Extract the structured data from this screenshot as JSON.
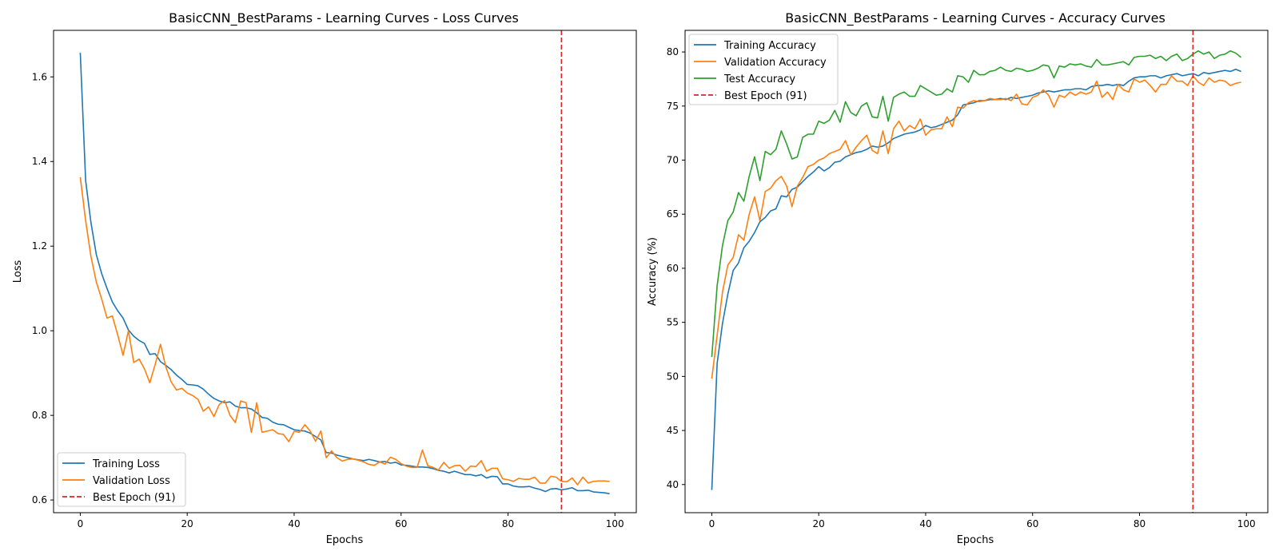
{
  "colors": {
    "training": "#1f77b4",
    "validation": "#ff7f0e",
    "test": "#2ca02c",
    "best_epoch": "#d62728"
  },
  "charts": {
    "loss": {
      "title": "BasicCNN_BestParams - Learning Curves - Loss Curves",
      "xlabel": "Epochs",
      "ylabel": "Loss",
      "xlim": [
        -5,
        104
      ],
      "ylim": [
        0.57,
        1.71
      ],
      "xticks": [
        0,
        20,
        40,
        60,
        80,
        100
      ],
      "yticks": [
        0.6,
        0.8,
        1.0,
        1.2,
        1.4,
        1.6
      ],
      "ytick_decimals": 1,
      "legend_position": "lower-left",
      "best_epoch_x": 90,
      "legend": [
        "Training Loss",
        "Validation Loss",
        "Best Epoch (91)"
      ]
    },
    "acc": {
      "title": "BasicCNN_BestParams - Learning Curves - Accuracy Curves",
      "xlabel": "Epochs",
      "ylabel": "Accuracy (%)",
      "xlim": [
        -5,
        104
      ],
      "ylim": [
        37.4,
        82.0
      ],
      "xticks": [
        0,
        20,
        40,
        60,
        80,
        100
      ],
      "yticks": [
        40,
        45,
        50,
        55,
        60,
        65,
        70,
        75,
        80
      ],
      "ytick_decimals": 0,
      "legend_position": "upper-left",
      "best_epoch_x": 90,
      "legend": [
        "Training Accuracy",
        "Validation Accuracy",
        "Test Accuracy",
        "Best Epoch (91)"
      ]
    }
  },
  "chart_data": [
    {
      "type": "line",
      "title": "BasicCNN_BestParams - Learning Curves - Loss Curves",
      "xlabel": "Epochs",
      "ylabel": "Loss",
      "xlim": [
        -5,
        104
      ],
      "ylim": [
        0.57,
        1.71
      ],
      "grid": false,
      "legend_position": "lower-left",
      "x_start": 0,
      "series": [
        {
          "name": "Training Loss",
          "values": [
            1.657,
            1.355,
            1.255,
            1.18,
            1.135,
            1.1,
            1.068,
            1.047,
            1.03,
            1.002,
            0.987,
            0.977,
            0.97,
            0.944,
            0.946,
            0.927,
            0.918,
            0.908,
            0.895,
            0.885,
            0.873,
            0.872,
            0.87,
            0.862,
            0.85,
            0.84,
            0.834,
            0.83,
            0.832,
            0.822,
            0.818,
            0.818,
            0.815,
            0.806,
            0.795,
            0.793,
            0.784,
            0.779,
            0.778,
            0.772,
            0.766,
            0.764,
            0.763,
            0.758,
            0.75,
            0.742,
            0.712,
            0.711,
            0.706,
            0.703,
            0.7,
            0.697,
            0.695,
            0.693,
            0.696,
            0.693,
            0.69,
            0.691,
            0.687,
            0.689,
            0.683,
            0.682,
            0.68,
            0.678,
            0.678,
            0.677,
            0.674,
            0.67,
            0.668,
            0.664,
            0.668,
            0.664,
            0.66,
            0.66,
            0.657,
            0.66,
            0.652,
            0.656,
            0.655,
            0.638,
            0.638,
            0.633,
            0.631,
            0.631,
            0.632,
            0.628,
            0.625,
            0.62,
            0.626,
            0.627,
            0.624,
            0.626,
            0.629,
            0.622,
            0.622,
            0.623,
            0.619,
            0.618,
            0.617,
            0.615
          ]
        },
        {
          "name": "Validation Loss",
          "values": [
            1.363,
            1.26,
            1.175,
            1.115,
            1.075,
            1.03,
            1.035,
            0.99,
            0.942,
            1.0,
            0.925,
            0.933,
            0.91,
            0.877,
            0.92,
            0.968,
            0.915,
            0.879,
            0.86,
            0.864,
            0.853,
            0.847,
            0.838,
            0.81,
            0.82,
            0.797,
            0.826,
            0.835,
            0.8,
            0.783,
            0.834,
            0.83,
            0.76,
            0.83,
            0.76,
            0.763,
            0.766,
            0.757,
            0.755,
            0.738,
            0.762,
            0.76,
            0.778,
            0.763,
            0.739,
            0.763,
            0.7,
            0.716,
            0.7,
            0.692,
            0.696,
            0.697,
            0.694,
            0.69,
            0.684,
            0.682,
            0.69,
            0.685,
            0.701,
            0.696,
            0.686,
            0.68,
            0.677,
            0.677,
            0.718,
            0.681,
            0.677,
            0.671,
            0.689,
            0.675,
            0.681,
            0.682,
            0.668,
            0.68,
            0.679,
            0.693,
            0.668,
            0.675,
            0.675,
            0.65,
            0.648,
            0.644,
            0.651,
            0.649,
            0.649,
            0.654,
            0.64,
            0.64,
            0.656,
            0.654,
            0.644,
            0.643,
            0.652,
            0.636,
            0.654,
            0.64,
            0.644,
            0.645,
            0.645,
            0.644
          ]
        }
      ],
      "best_epoch_line": {
        "name": "Best Epoch (91)",
        "x": 90
      }
    },
    {
      "type": "line",
      "title": "BasicCNN_BestParams - Learning Curves - Accuracy Curves",
      "xlabel": "Epochs",
      "ylabel": "Accuracy (%)",
      "xlim": [
        -5,
        104
      ],
      "ylim": [
        37.4,
        82.0
      ],
      "grid": false,
      "legend_position": "upper-left",
      "x_start": 0,
      "series": [
        {
          "name": "Training Accuracy",
          "values": [
            39.5,
            51.2,
            54.9,
            57.6,
            59.8,
            60.5,
            61.9,
            62.5,
            63.3,
            64.3,
            64.7,
            65.3,
            65.5,
            66.7,
            66.6,
            67.3,
            67.5,
            68.0,
            68.5,
            68.9,
            69.4,
            69.0,
            69.3,
            69.8,
            69.9,
            70.3,
            70.5,
            70.7,
            70.8,
            71.0,
            71.3,
            71.2,
            71.3,
            71.6,
            72.0,
            72.2,
            72.4,
            72.5,
            72.6,
            72.8,
            73.2,
            73.0,
            73.1,
            73.3,
            73.5,
            73.7,
            74.2,
            75.1,
            75.2,
            75.3,
            75.5,
            75.5,
            75.6,
            75.6,
            75.7,
            75.6,
            75.8,
            75.7,
            75.8,
            75.9,
            76.0,
            76.2,
            76.3,
            76.4,
            76.3,
            76.4,
            76.5,
            76.5,
            76.6,
            76.6,
            76.5,
            76.8,
            76.9,
            76.9,
            77.0,
            76.9,
            77.0,
            76.9,
            77.3,
            77.6,
            77.7,
            77.7,
            77.8,
            77.8,
            77.6,
            77.8,
            77.9,
            78.0,
            77.8,
            77.9,
            78.0,
            77.8,
            78.1,
            78.0,
            78.1,
            78.2,
            78.3,
            78.2,
            78.4,
            78.2
          ]
        },
        {
          "name": "Validation Accuracy",
          "values": [
            49.8,
            53.8,
            57.8,
            60.3,
            61.0,
            63.1,
            62.6,
            65.0,
            66.6,
            64.4,
            67.1,
            67.4,
            68.1,
            68.5,
            67.6,
            65.7,
            67.6,
            68.4,
            69.4,
            69.6,
            70.0,
            70.2,
            70.6,
            70.8,
            71.0,
            71.8,
            70.5,
            71.2,
            71.8,
            72.3,
            70.9,
            70.6,
            72.7,
            70.6,
            72.9,
            73.6,
            72.7,
            73.2,
            72.9,
            73.8,
            72.3,
            72.8,
            72.9,
            72.9,
            74.0,
            73.1,
            74.9,
            74.8,
            75.3,
            75.5,
            75.4,
            75.5,
            75.7,
            75.6,
            75.6,
            75.7,
            75.5,
            76.1,
            75.2,
            75.1,
            75.8,
            76.0,
            76.5,
            76.0,
            74.9,
            76.0,
            75.8,
            76.3,
            76.0,
            76.3,
            76.1,
            76.3,
            77.3,
            75.8,
            76.3,
            75.6,
            77.0,
            76.5,
            76.3,
            77.5,
            77.2,
            77.4,
            76.9,
            76.3,
            77.0,
            77.0,
            77.8,
            77.3,
            77.3,
            76.9,
            77.8,
            77.2,
            76.9,
            77.6,
            77.2,
            77.4,
            77.3,
            76.9,
            77.1,
            77.2
          ]
        },
        {
          "name": "Test Accuracy",
          "values": [
            51.8,
            58.4,
            62.1,
            64.4,
            65.2,
            67.0,
            66.2,
            68.5,
            70.3,
            68.1,
            70.8,
            70.5,
            71.0,
            72.7,
            71.5,
            70.1,
            70.3,
            72.1,
            72.4,
            72.4,
            73.6,
            73.4,
            73.7,
            74.6,
            73.5,
            75.4,
            74.4,
            74.1,
            75.0,
            75.3,
            74.0,
            73.9,
            75.9,
            73.6,
            75.8,
            76.1,
            76.3,
            75.9,
            75.9,
            76.9,
            76.6,
            76.3,
            76.0,
            76.1,
            76.6,
            76.3,
            77.8,
            77.7,
            77.2,
            78.3,
            77.9,
            77.9,
            78.2,
            78.3,
            78.6,
            78.3,
            78.2,
            78.5,
            78.4,
            78.2,
            78.3,
            78.5,
            78.8,
            78.7,
            77.6,
            78.7,
            78.6,
            78.9,
            78.8,
            78.9,
            78.7,
            78.6,
            79.3,
            78.8,
            78.8,
            78.9,
            79.0,
            79.1,
            78.8,
            79.5,
            79.6,
            79.6,
            79.7,
            79.4,
            79.6,
            79.2,
            79.6,
            79.8,
            79.2,
            79.4,
            79.8,
            80.1,
            79.8,
            80.0,
            79.4,
            79.7,
            79.8,
            80.1,
            79.9,
            79.5
          ]
        }
      ],
      "best_epoch_line": {
        "name": "Best Epoch (91)",
        "x": 90
      }
    }
  ]
}
